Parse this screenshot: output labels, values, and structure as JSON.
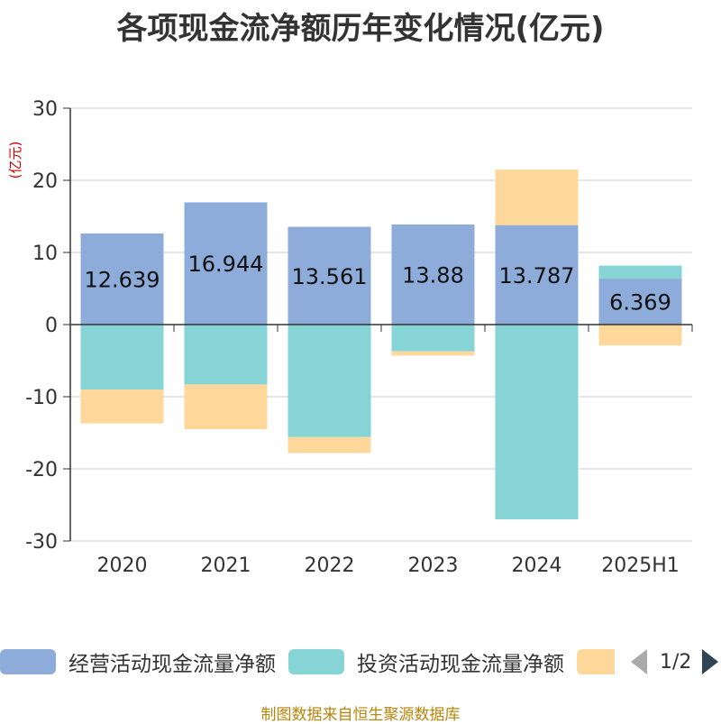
{
  "chart_data": {
    "type": "bar",
    "stacked": true,
    "title": "各项现金流净额历年变化情况(亿元)",
    "ylabel": "(亿元)",
    "ylim": [
      -30,
      30
    ],
    "yticks": [
      30,
      20,
      10,
      0,
      -10,
      -20,
      -30
    ],
    "categories": [
      "2020",
      "2021",
      "2022",
      "2023",
      "2024",
      "2025H1"
    ],
    "grid": true,
    "legend_position": "bottom",
    "series": [
      {
        "name": "经营活动现金流量净额",
        "color": "#8eacda",
        "values": [
          12.639,
          16.944,
          13.561,
          13.88,
          13.787,
          6.369
        ],
        "show_labels": true
      },
      {
        "name": "投资活动现金流量净额",
        "color": "#86d4d6",
        "values": [
          -9.0,
          -8.3,
          -15.6,
          -3.7,
          -27.0,
          1.8
        ]
      },
      {
        "name": "",
        "color": "#fdd89a",
        "values": [
          -4.7,
          -6.2,
          -2.2,
          -0.6,
          7.7,
          -2.9
        ]
      }
    ]
  },
  "legend": {
    "items": [
      {
        "label": "经营活动现金流量净额",
        "color": "#8eacda"
      },
      {
        "label": "投资活动现金流量净额",
        "color": "#86d4d6"
      },
      {
        "label": "",
        "color": "#fdd89a"
      }
    ],
    "page_indicator": "1/2"
  },
  "source": "制图数据来自恒生聚源数据库"
}
